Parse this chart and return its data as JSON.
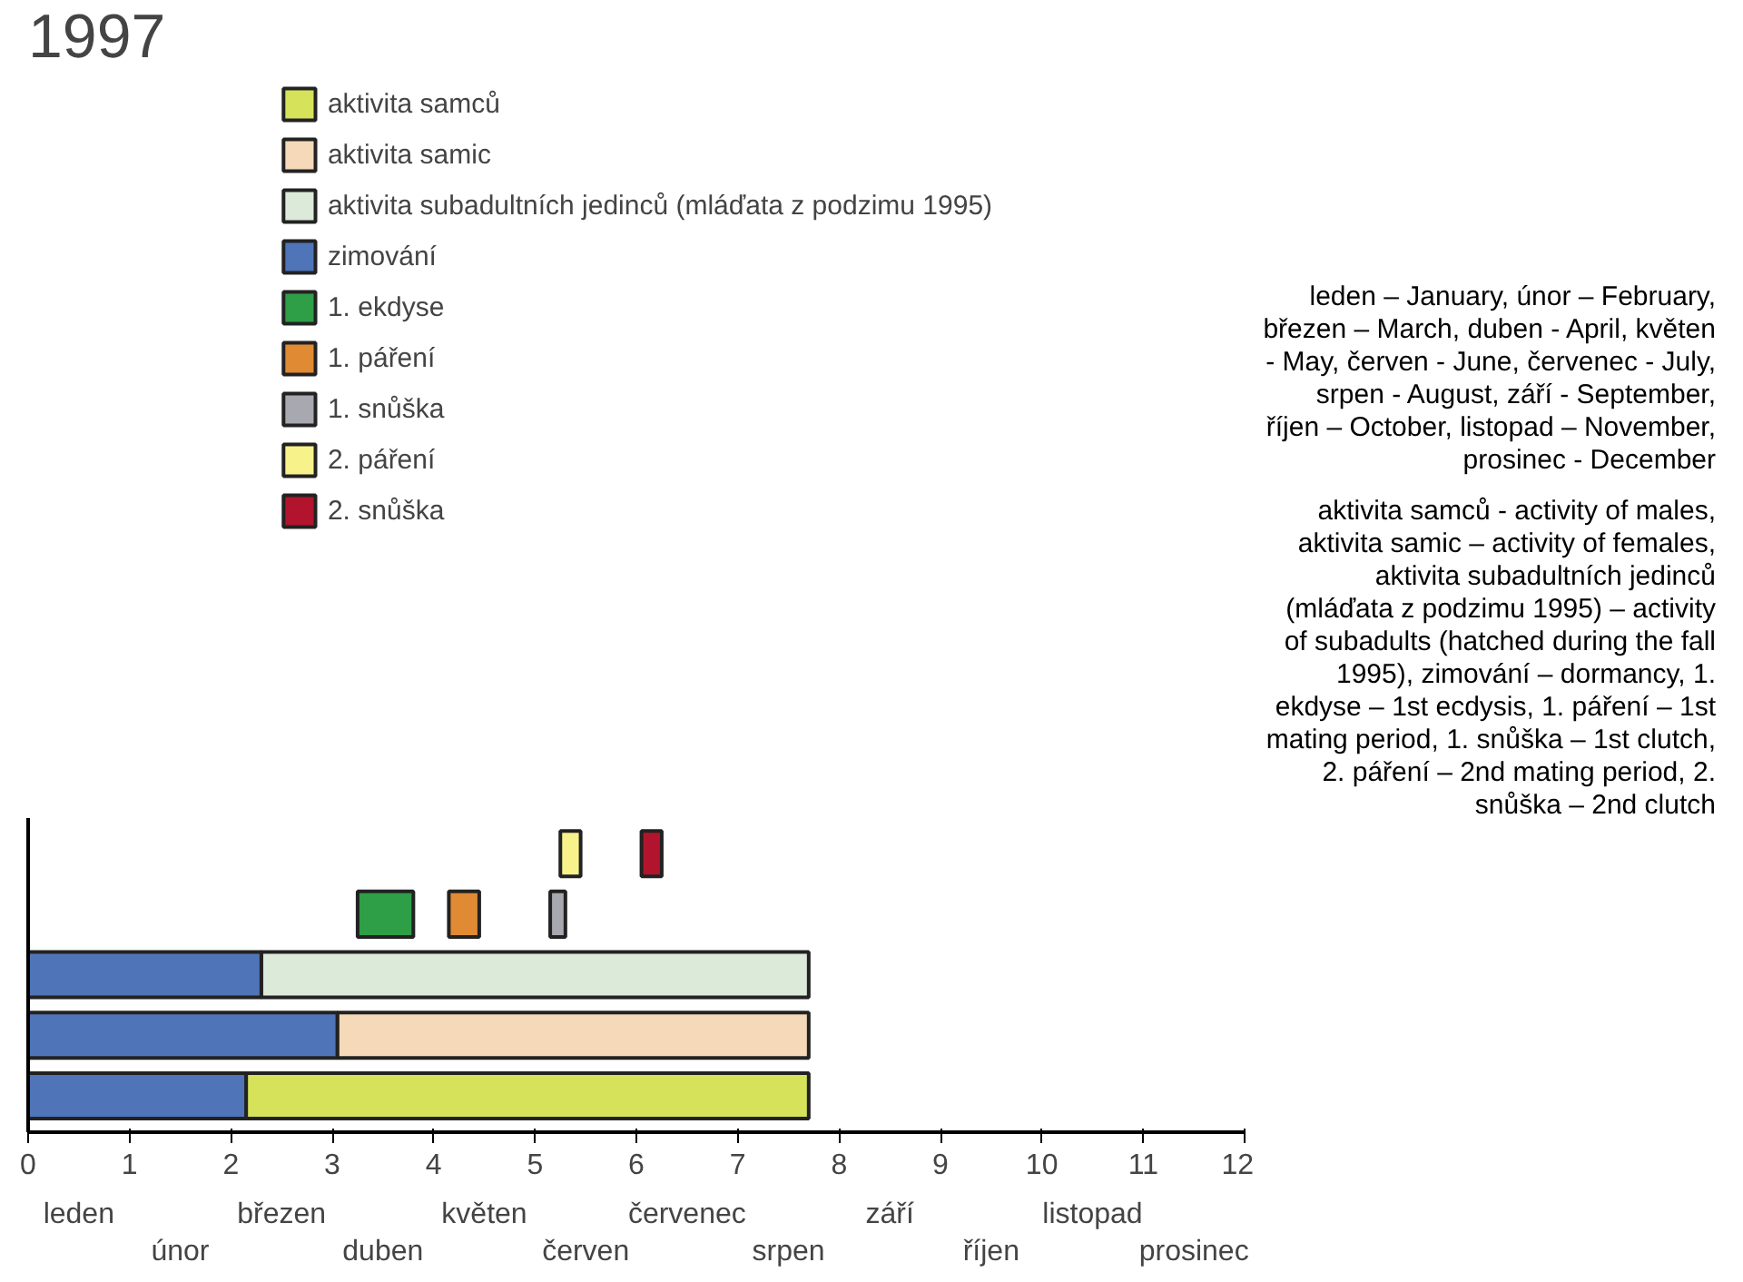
{
  "chart_data": {
    "type": "bar",
    "orientation": "horizontal",
    "title": "1997",
    "categories": [
      null,
      null,
      null,
      null,
      null
    ],
    "series": [
      {
        "name": "aktivita samců",
        "color": "#d6e35a",
        "base": [
          null,
          null,
          null,
          null,
          2.15
        ],
        "values": [
          null,
          null,
          null,
          null,
          5.55
        ]
      },
      {
        "name": "aktivita samic",
        "color": "#f5d9b8",
        "base": [
          null,
          null,
          null,
          3.05,
          null
        ],
        "values": [
          null,
          null,
          null,
          4.65,
          null
        ]
      },
      {
        "name": "aktivita subadultních jedinců (mláďata z podzimu 1995)",
        "color": "#dcebd9",
        "base": [
          null,
          null,
          2.3,
          null,
          null
        ],
        "values": [
          null,
          null,
          5.4,
          null,
          null
        ]
      },
      {
        "name": "zimování",
        "color": "#4f74b8",
        "base": [
          null,
          null,
          0,
          0,
          0
        ],
        "values": [
          null,
          null,
          2.3,
          3.05,
          2.15
        ]
      },
      {
        "name": "1. ekdyse",
        "color": "#2e9e47",
        "base": [
          null,
          3.25,
          null,
          null,
          null
        ],
        "values": [
          null,
          0.55,
          null,
          null,
          null
        ]
      },
      {
        "name": "1. páření",
        "color": "#e08a34",
        "base": [
          null,
          4.15,
          null,
          null,
          null
        ],
        "values": [
          null,
          0.3,
          null,
          null,
          null
        ]
      },
      {
        "name": "1. snůška",
        "color": "#a8a8b0",
        "base": [
          null,
          5.15,
          null,
          null,
          null
        ],
        "values": [
          null,
          0.15,
          null,
          null,
          null
        ]
      },
      {
        "name": "2. páření",
        "color": "#f8f28a",
        "base": [
          5.25,
          null,
          null,
          null,
          null
        ],
        "values": [
          0.2,
          null,
          null,
          null,
          null
        ]
      },
      {
        "name": "2. snůška",
        "color": "#b3142d",
        "base": [
          6.05,
          null,
          null,
          null,
          null
        ],
        "values": [
          0.2,
          null,
          null,
          null,
          null
        ]
      }
    ],
    "xlim": [
      0,
      12
    ],
    "xticks": [
      0,
      1,
      2,
      3,
      4,
      5,
      6,
      7,
      8,
      9,
      10,
      11,
      12
    ],
    "tick_labels": "x",
    "grid": false,
    "legend": "top",
    "annotations": [
      "leden",
      "únor",
      "březen",
      "duben",
      "květen",
      "červen",
      "červenec",
      "srpen",
      "září",
      "říjen",
      "listopad",
      "prosinec",
      "leden – January, únor – February, březen – March, duben - April, květen - May, červen - June, červenec - July, srpen - August, září - September, říjen – October, listopad – November, prosinec - December",
      "aktivita samců - activity of males, aktivita samic – activity of females, aktivita subadultních jedinců (mláďata z podzimu 1995) – activity of subadults (hatched during the fall 1995), zimování – dormancy, 1. ekdyse – 1st ecdysis, 1. páření – 1st mating period, 1. snůška – 1st clutch, 2. páření – 2nd mating period, 2. snůška – 2nd clutch"
    ]
  }
}
